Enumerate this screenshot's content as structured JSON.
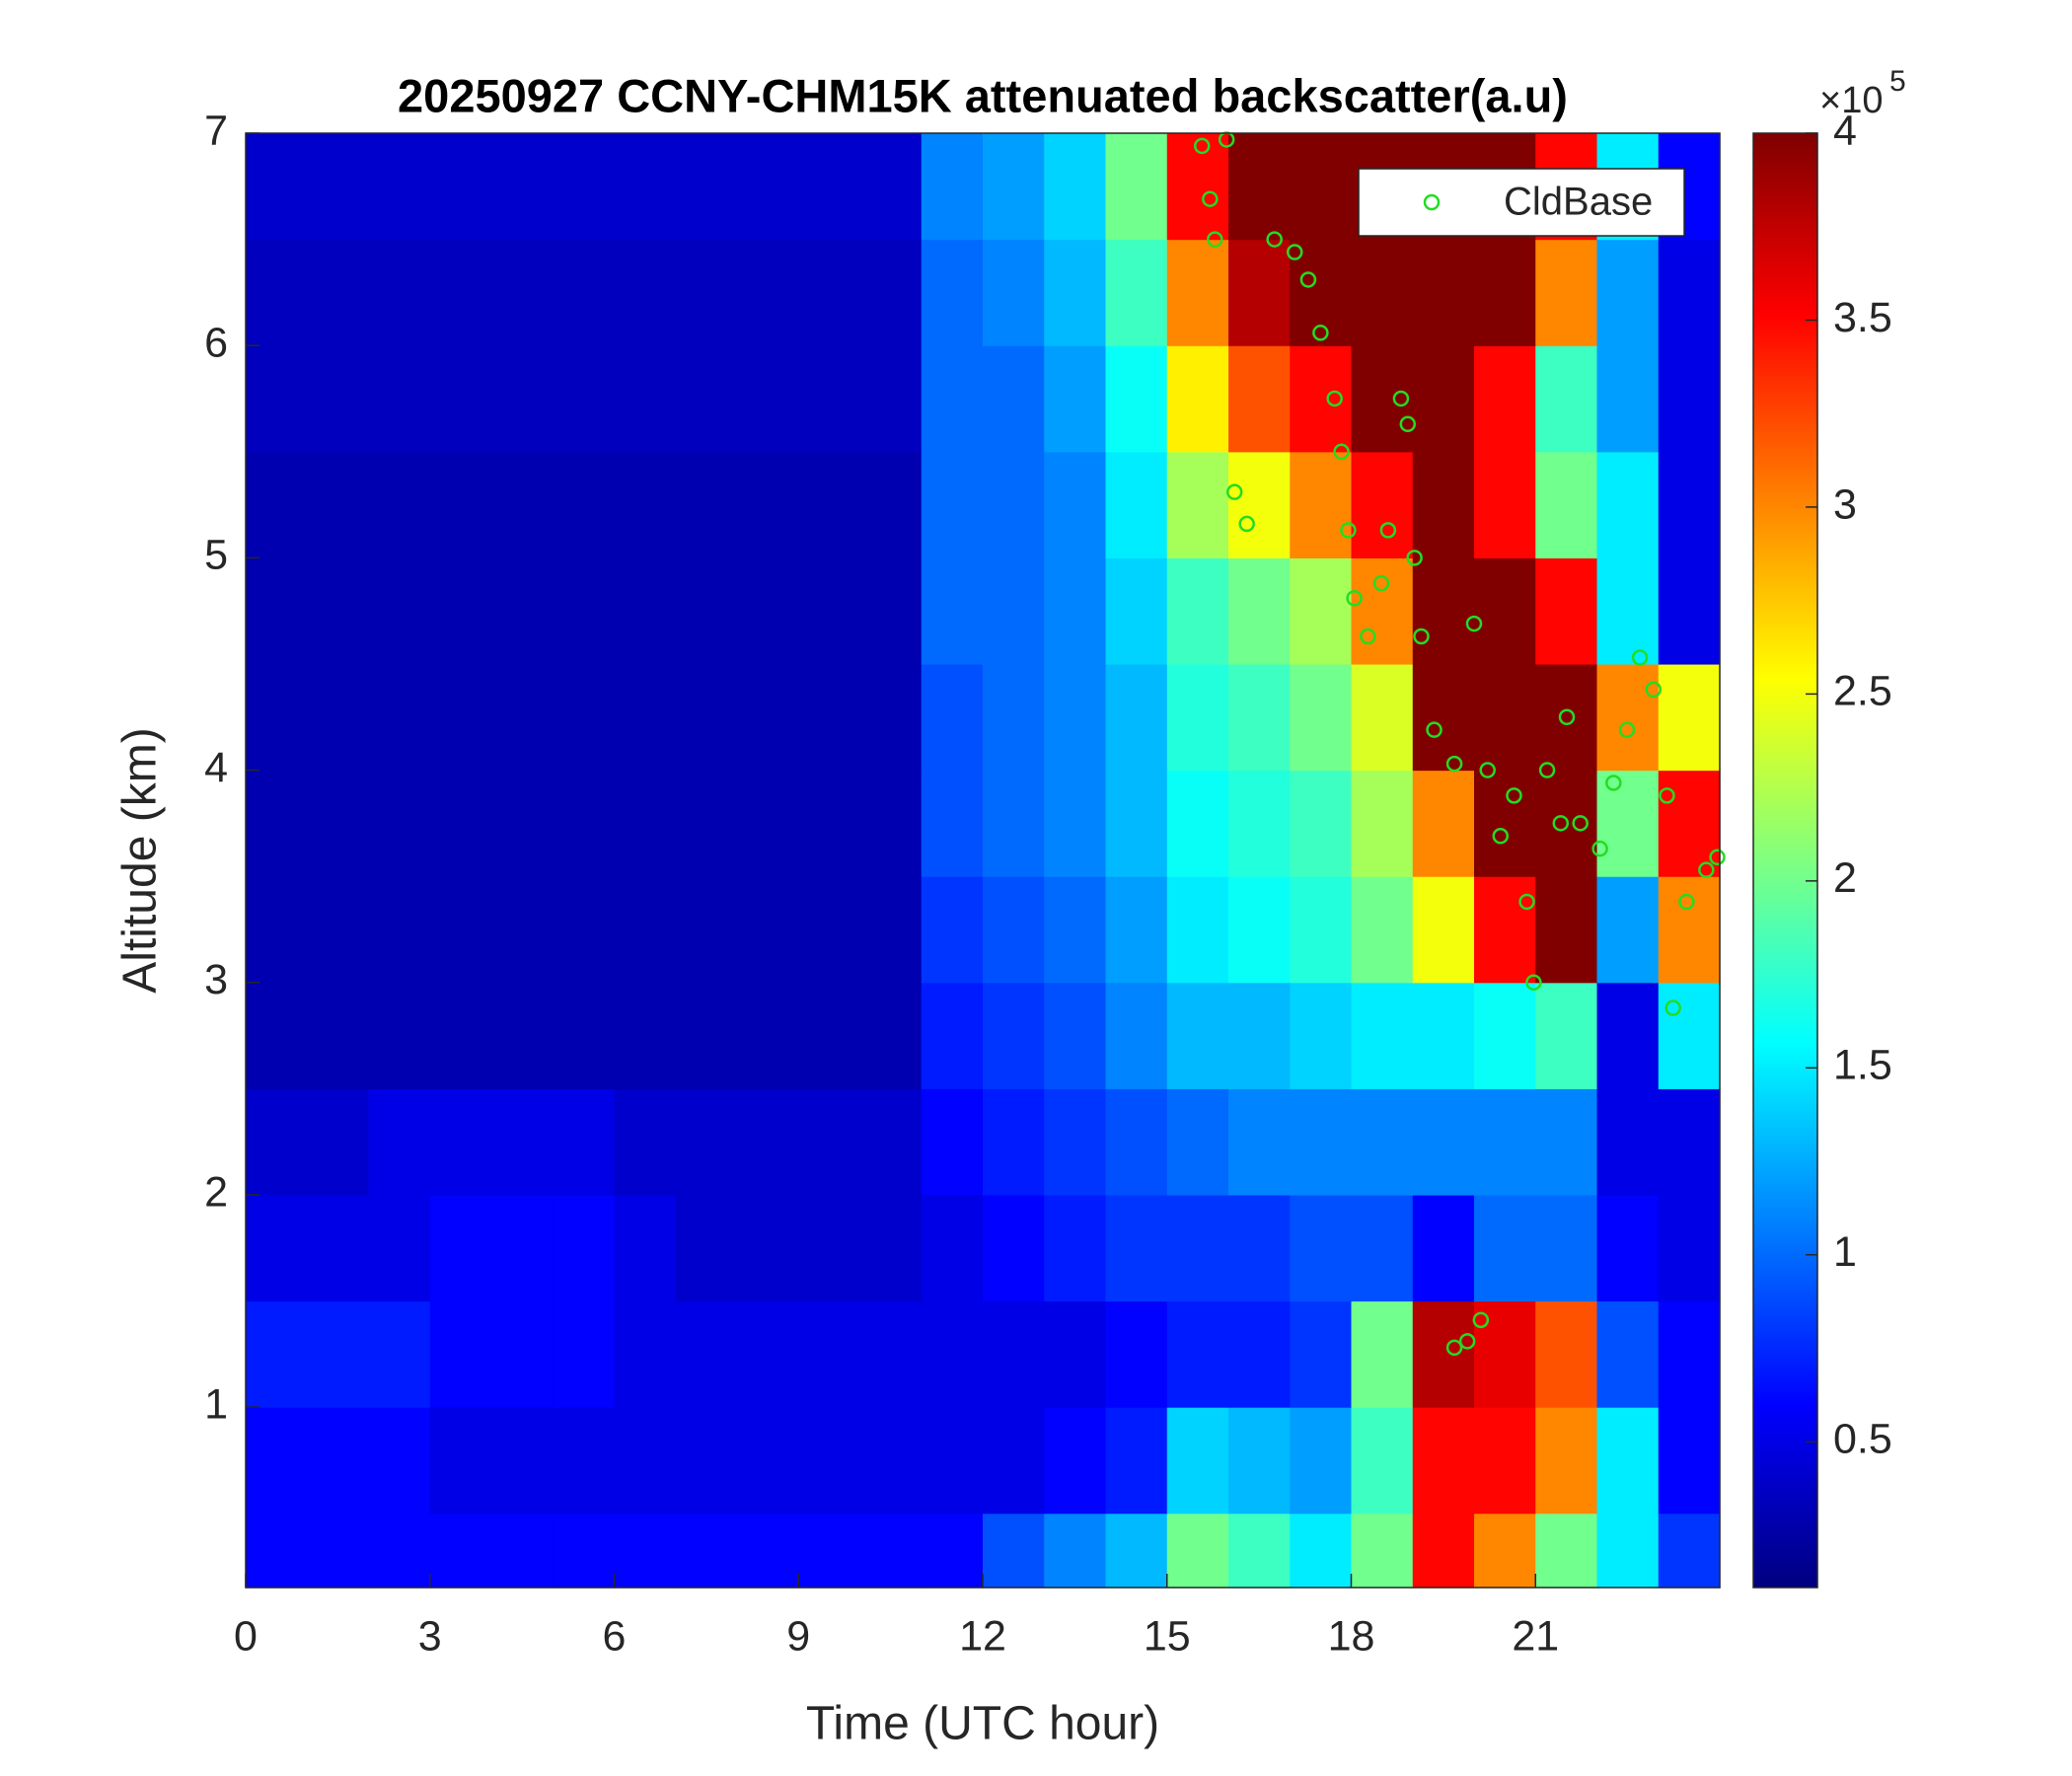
{
  "chart_data": {
    "type": "heatmap",
    "title": "20250927 CCNY-CHM15K attenuated backscatter(a.u)",
    "xlabel": "Time (UTC hour)",
    "ylabel": "Altitude (km)",
    "xlim": [
      0,
      24
    ],
    "ylim": [
      0.15,
      7
    ],
    "xticks": [
      0,
      3,
      6,
      9,
      12,
      15,
      18,
      21
    ],
    "yticks": [
      1,
      2,
      3,
      4,
      5,
      6,
      7
    ],
    "colormap": "jet",
    "clim": [
      0.11,
      4
    ],
    "cticks": [
      0.5,
      1,
      1.5,
      2,
      2.5,
      3,
      3.5,
      4
    ],
    "colorbar_exponent": {
      "base": "×10",
      "power": "5"
    },
    "legend": "upper right",
    "x_edges": [
      0,
      1,
      2,
      3,
      4,
      5,
      6,
      7,
      8,
      9,
      10,
      11,
      12,
      13,
      14,
      15,
      16,
      17,
      18,
      19,
      20,
      21,
      22,
      23,
      24
    ],
    "y_edges": [
      0.15,
      0.5,
      1,
      1.5,
      2,
      2.5,
      3,
      3.5,
      4,
      4.5,
      5,
      5.5,
      6,
      6.5,
      7
    ],
    "z": [
      [
        0.6,
        0.6,
        0.6,
        0.6,
        0.6,
        0.6,
        0.6,
        0.6,
        0.6,
        0.6,
        0.6,
        0.6,
        0.9,
        1.1,
        1.3,
        2.0,
        1.8,
        1.5,
        2.0,
        3.5,
        3.0,
        2.0,
        1.5,
        0.8
      ],
      [
        0.6,
        0.6,
        0.6,
        0.5,
        0.5,
        0.5,
        0.5,
        0.5,
        0.5,
        0.5,
        0.5,
        0.5,
        0.5,
        0.6,
        0.7,
        1.4,
        1.3,
        1.2,
        1.8,
        3.5,
        3.5,
        3.0,
        1.5,
        0.6
      ],
      [
        0.7,
        0.7,
        0.7,
        0.6,
        0.6,
        0.6,
        0.5,
        0.5,
        0.5,
        0.5,
        0.5,
        0.5,
        0.5,
        0.5,
        0.6,
        0.7,
        0.7,
        0.8,
        2.0,
        3.8,
        3.6,
        3.2,
        0.9,
        0.6
      ],
      [
        0.5,
        0.5,
        0.5,
        0.6,
        0.6,
        0.6,
        0.5,
        0.4,
        0.4,
        0.4,
        0.4,
        0.5,
        0.6,
        0.7,
        0.8,
        0.8,
        0.8,
        0.9,
        0.9,
        0.6,
        1.0,
        1.0,
        0.6,
        0.5
      ],
      [
        0.4,
        0.4,
        0.5,
        0.5,
        0.5,
        0.5,
        0.4,
        0.4,
        0.4,
        0.4,
        0.4,
        0.6,
        0.7,
        0.8,
        0.9,
        1.0,
        1.1,
        1.1,
        1.1,
        1.1,
        1.1,
        1.1,
        0.5,
        0.5
      ],
      [
        0.3,
        0.3,
        0.3,
        0.3,
        0.3,
        0.3,
        0.3,
        0.3,
        0.3,
        0.3,
        0.3,
        0.7,
        0.8,
        0.9,
        1.1,
        1.3,
        1.3,
        1.4,
        1.5,
        1.5,
        1.6,
        1.8,
        0.5,
        1.5
      ],
      [
        0.3,
        0.3,
        0.3,
        0.3,
        0.3,
        0.3,
        0.3,
        0.3,
        0.3,
        0.3,
        0.3,
        0.8,
        0.9,
        1.0,
        1.2,
        1.5,
        1.6,
        1.7,
        2.0,
        2.5,
        3.5,
        4.0,
        1.2,
        3.0
      ],
      [
        0.3,
        0.3,
        0.3,
        0.3,
        0.3,
        0.3,
        0.3,
        0.3,
        0.3,
        0.3,
        0.3,
        0.9,
        1.0,
        1.1,
        1.3,
        1.6,
        1.7,
        1.8,
        2.2,
        3.0,
        4.0,
        4.0,
        2.0,
        3.5
      ],
      [
        0.3,
        0.3,
        0.3,
        0.3,
        0.3,
        0.3,
        0.3,
        0.3,
        0.3,
        0.3,
        0.3,
        0.9,
        1.0,
        1.1,
        1.3,
        1.7,
        1.8,
        2.0,
        2.4,
        4.0,
        4.0,
        4.0,
        3.0,
        2.5
      ],
      [
        0.3,
        0.3,
        0.3,
        0.3,
        0.3,
        0.3,
        0.3,
        0.3,
        0.3,
        0.3,
        0.3,
        1.0,
        1.0,
        1.1,
        1.4,
        1.8,
        2.0,
        2.2,
        3.0,
        4.0,
        4.0,
        3.5,
        1.5,
        0.5
      ],
      [
        0.3,
        0.3,
        0.3,
        0.3,
        0.3,
        0.3,
        0.3,
        0.3,
        0.3,
        0.3,
        0.3,
        1.0,
        1.0,
        1.1,
        1.5,
        2.2,
        2.5,
        3.0,
        3.5,
        4.0,
        3.5,
        2.0,
        1.5,
        0.5
      ],
      [
        0.35,
        0.35,
        0.35,
        0.35,
        0.35,
        0.35,
        0.35,
        0.35,
        0.35,
        0.35,
        0.35,
        1.0,
        1.0,
        1.2,
        1.6,
        2.6,
        3.2,
        3.5,
        4.0,
        4.0,
        3.5,
        1.8,
        1.2,
        0.5
      ],
      [
        0.35,
        0.35,
        0.35,
        0.35,
        0.35,
        0.35,
        0.35,
        0.35,
        0.35,
        0.35,
        0.35,
        1.0,
        1.1,
        1.3,
        1.8,
        3.0,
        3.8,
        4.0,
        4.0,
        4.0,
        4.0,
        3.0,
        1.2,
        0.5
      ],
      [
        0.4,
        0.4,
        0.4,
        0.4,
        0.4,
        0.4,
        0.4,
        0.4,
        0.4,
        0.4,
        0.4,
        1.1,
        1.2,
        1.4,
        2.0,
        3.5,
        4.0,
        4.0,
        4.0,
        4.0,
        4.0,
        3.5,
        1.5,
        0.6
      ]
    ],
    "series": [
      {
        "name": "CldBase",
        "type": "scatter",
        "color": "#22dd22",
        "x": [
          15.57,
          15.7,
          15.78,
          15.97,
          16.1,
          16.3,
          16.75,
          17.08,
          17.3,
          17.5,
          17.73,
          17.84,
          17.95,
          18.05,
          18.27,
          18.49,
          18.6,
          18.81,
          18.92,
          19.03,
          19.14,
          19.35,
          19.68,
          20.0,
          20.22,
          20.43,
          20.65,
          20.86,
          20.97,
          21.19,
          21.41,
          21.51,
          21.73,
          22.05,
          22.27,
          22.49,
          22.7,
          22.92,
          23.14,
          23.24,
          23.46,
          23.78,
          23.96,
          19.68,
          19.89,
          20.11
        ],
        "y": [
          6.94,
          6.69,
          6.5,
          6.97,
          5.31,
          5.16,
          6.5,
          6.44,
          6.31,
          6.06,
          5.75,
          5.5,
          5.13,
          4.81,
          4.63,
          4.88,
          5.13,
          5.75,
          5.63,
          5.0,
          4.63,
          4.19,
          4.03,
          4.69,
          4.0,
          3.69,
          3.88,
          3.38,
          3.0,
          4.0,
          3.75,
          4.25,
          3.75,
          3.63,
          3.94,
          4.19,
          4.53,
          4.38,
          3.88,
          2.88,
          3.38,
          3.53,
          3.59,
          1.28,
          1.31,
          1.41
        ]
      }
    ]
  }
}
